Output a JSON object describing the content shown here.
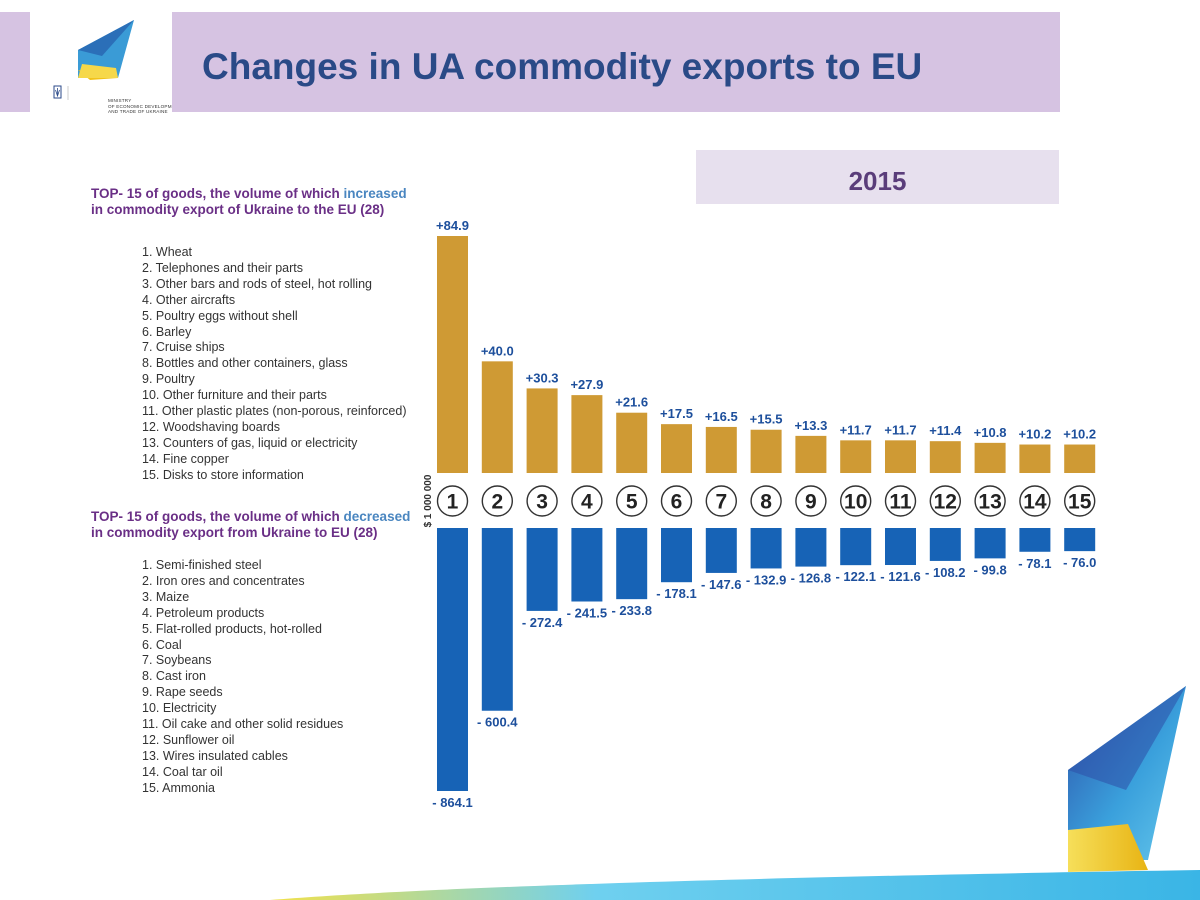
{
  "header": {
    "title": "Changes in UA commodity exports to EU",
    "ministry_lines": [
      "MINISTRY",
      "OF ECONOMIC DEVELOPMENT",
      "AND TRADE OF UKRAINE"
    ]
  },
  "year": "2015",
  "increased": {
    "heading_before": "TOP- 15 of goods, the volume of which ",
    "heading_emph": "increased",
    "heading_after": "in commodity export of Ukraine to the EU (28)",
    "items": [
      "1. Wheat",
      "2. Telephones and their parts",
      "3. Other bars and rods of steel, hot rolling",
      "4. Other aircrafts",
      "5. Poultry eggs without shell",
      "6. Barley",
      "7. Cruise ships",
      "8. Bottles and other containers, glass",
      "9. Poultry",
      "10. Other furniture and their parts",
      "11. Other plastic plates (non-porous, reinforced)",
      "12. Woodshaving boards",
      "13. Counters of gas, liquid or electricity",
      "14. Fine copper",
      "15. Disks to store information"
    ]
  },
  "decreased": {
    "heading_before": "TOP- 15 of goods, the volume of which ",
    "heading_emph": "decreased",
    "heading_after": "in commodity export from Ukraine to EU (28)",
    "items": [
      "1. Semi-finished steel",
      "2. Iron ores and concentrates",
      "3. Maize",
      "4. Petroleum products",
      "5. Flat-rolled products, hot-rolled",
      "6. Coal",
      "7. Soybeans",
      "8. Cast iron",
      "9. Rape seeds",
      "10. Electricity",
      "11. Oil cake and other solid residues",
      "12. Sunflower oil",
      "13. Wires insulated cables",
      "14. Coal tar oil",
      "15. Ammonia"
    ]
  },
  "chart_data": {
    "type": "bar",
    "categories": [
      "1",
      "2",
      "3",
      "4",
      "5",
      "6",
      "7",
      "8",
      "9",
      "10",
      "11",
      "12",
      "13",
      "14",
      "15"
    ],
    "ylabel": "$ 1 000 000",
    "series": [
      {
        "values": [
          84.9,
          40.0,
          30.3,
          27.9,
          21.6,
          17.5,
          16.5,
          15.5,
          13.3,
          11.7,
          11.7,
          11.4,
          10.8,
          10.2,
          10.2
        ],
        "labels": [
          "+84.9",
          "+40.0",
          "+30.3",
          "+27.9",
          "+21.6",
          "+17.5",
          "+16.5",
          "+15.5",
          "+13.3",
          "+11.7",
          "+11.7",
          "+11.4",
          "+10.8",
          "+10.2",
          "+10.2"
        ],
        "color": "#cf9a34"
      },
      {
        "values": [
          -864.1,
          -600.4,
          -272.4,
          -241.5,
          -233.8,
          -178.1,
          -147.6,
          -132.9,
          -126.8,
          -122.1,
          -121.6,
          -108.2,
          -99.8,
          -78.1,
          -76.0
        ],
        "labels": [
          "- 864.1",
          "- 600.4",
          "- 272.4",
          "- 241.5",
          "- 233.8",
          "- 178.1",
          "- 147.6",
          "- 132.9",
          "- 126.8",
          "- 122.1",
          "- 121.6",
          "- 108.2",
          "- 99.8",
          "- 78.1",
          "- 76.0"
        ],
        "color": "#1763b6"
      }
    ]
  },
  "colors": {
    "title": "#2a4a87",
    "band": "#d6c3e2",
    "increase": "#cf9a34",
    "decrease": "#1763b6",
    "heading": "#6a2f86",
    "accent": "#4a86c0"
  }
}
